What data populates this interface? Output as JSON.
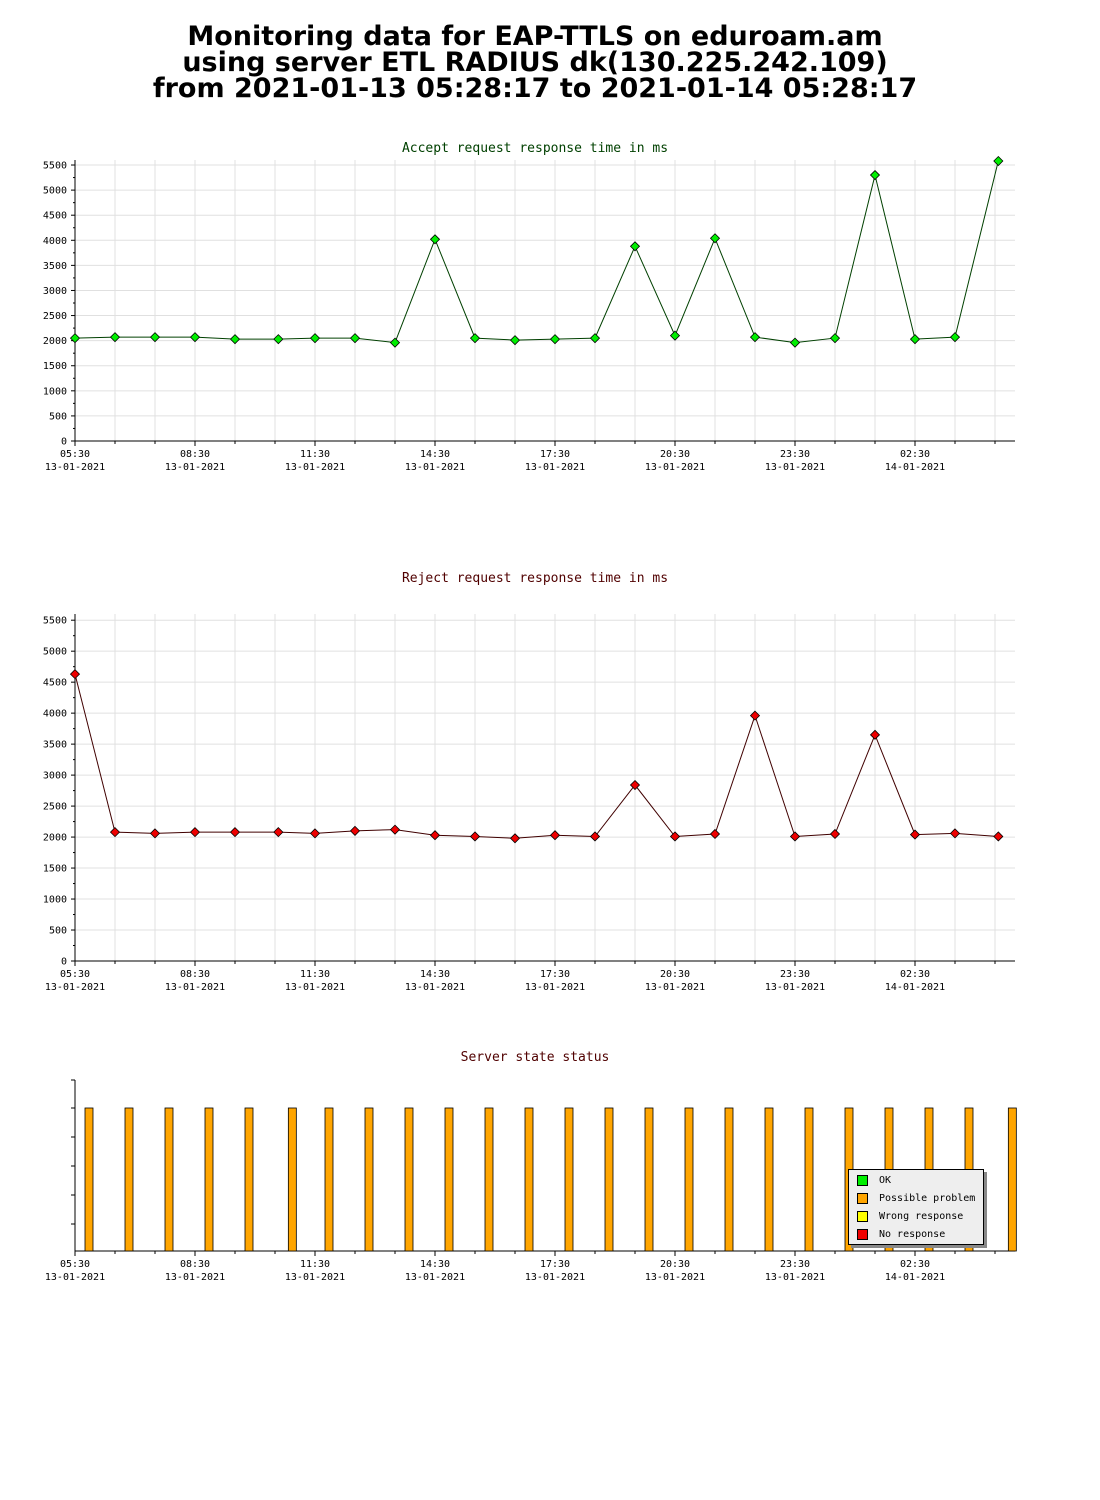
{
  "page": {
    "title_lines": [
      "Monitoring data for EAP-TTLS on eduroam.am",
      "using server ETL RADIUS dk(130.225.242.109)",
      "from 2021-01-13 05:28:17 to 2021-01-14 05:28:17"
    ]
  },
  "x_axis": {
    "ticks": [
      {
        "time": "05:30",
        "date": "13-01-2021"
      },
      {
        "time": "08:30",
        "date": "13-01-2021"
      },
      {
        "time": "11:30",
        "date": "13-01-2021"
      },
      {
        "time": "14:30",
        "date": "13-01-2021"
      },
      {
        "time": "17:30",
        "date": "13-01-2021"
      },
      {
        "time": "20:30",
        "date": "13-01-2021"
      },
      {
        "time": "23:30",
        "date": "13-01-2021"
      },
      {
        "time": "02:30",
        "date": "14-01-2021"
      }
    ]
  },
  "chart_data": [
    {
      "type": "line",
      "title": "Accept request response time in ms",
      "color": "#00ee00",
      "line_color": "#004000",
      "ylim": [
        0,
        5600
      ],
      "yticks": [
        0,
        500,
        1000,
        1500,
        2000,
        2500,
        3000,
        3500,
        4000,
        4500,
        5000,
        5500
      ],
      "x": [
        "05:30",
        "06:30",
        "07:30",
        "08:30",
        "09:30",
        "10:35",
        "11:30",
        "12:30",
        "13:30",
        "14:30",
        "15:30",
        "16:30",
        "17:30",
        "18:30",
        "19:30",
        "20:30",
        "21:30",
        "22:30",
        "23:30",
        "00:30",
        "01:30",
        "02:30",
        "03:30",
        "04:35"
      ],
      "values": [
        2050,
        2070,
        2070,
        2070,
        2030,
        2030,
        2050,
        2050,
        1960,
        4020,
        2050,
        2010,
        2030,
        2050,
        3880,
        2100,
        4040,
        2070,
        1960,
        2050,
        5300,
        2030,
        2070,
        5580
      ]
    },
    {
      "type": "line",
      "title": "Reject request response time in ms",
      "color": "#ee0000",
      "line_color": "#400000",
      "ylim": [
        0,
        5600
      ],
      "yticks": [
        0,
        500,
        1000,
        1500,
        2000,
        2500,
        3000,
        3500,
        4000,
        4500,
        5000,
        5500
      ],
      "x": [
        "05:30",
        "06:30",
        "07:30",
        "08:30",
        "09:30",
        "10:35",
        "11:30",
        "12:30",
        "13:30",
        "14:30",
        "15:30",
        "16:30",
        "17:30",
        "18:30",
        "19:30",
        "20:30",
        "21:30",
        "22:30",
        "23:30",
        "00:30",
        "01:30",
        "02:30",
        "03:30",
        "04:35"
      ],
      "values": [
        4630,
        2080,
        2060,
        2080,
        2080,
        2080,
        2060,
        2100,
        2120,
        2030,
        2010,
        1980,
        2030,
        2010,
        2840,
        2010,
        2050,
        3960,
        2010,
        2050,
        3650,
        2040,
        2060,
        2010
      ]
    },
    {
      "type": "bar",
      "title": "Server state status",
      "x": [
        "05:30",
        "06:30",
        "07:30",
        "08:30",
        "09:30",
        "10:35",
        "11:30",
        "12:30",
        "13:30",
        "14:30",
        "15:30",
        "16:30",
        "17:30",
        "18:30",
        "19:30",
        "20:30",
        "21:30",
        "22:30",
        "23:30",
        "00:30",
        "01:30",
        "02:30",
        "03:30",
        "04:35"
      ],
      "states": [
        "Possible problem",
        "Possible problem",
        "Possible problem",
        "Possible problem",
        "Possible problem",
        "Possible problem",
        "Possible problem",
        "Possible problem",
        "Possible problem",
        "Possible problem",
        "Possible problem",
        "Possible problem",
        "Possible problem",
        "Possible problem",
        "Possible problem",
        "Possible problem",
        "Possible problem",
        "Possible problem",
        "Possible problem",
        "Possible problem",
        "Possible problem",
        "Possible problem",
        "Possible problem",
        "Possible problem"
      ],
      "legend": [
        {
          "label": "OK",
          "color": "#00ee00"
        },
        {
          "label": "Possible problem",
          "color": "#ffa500"
        },
        {
          "label": "Wrong response",
          "color": "#ffff00"
        },
        {
          "label": "No response",
          "color": "#ee0000"
        }
      ],
      "legend_position": "bottom-right"
    }
  ]
}
